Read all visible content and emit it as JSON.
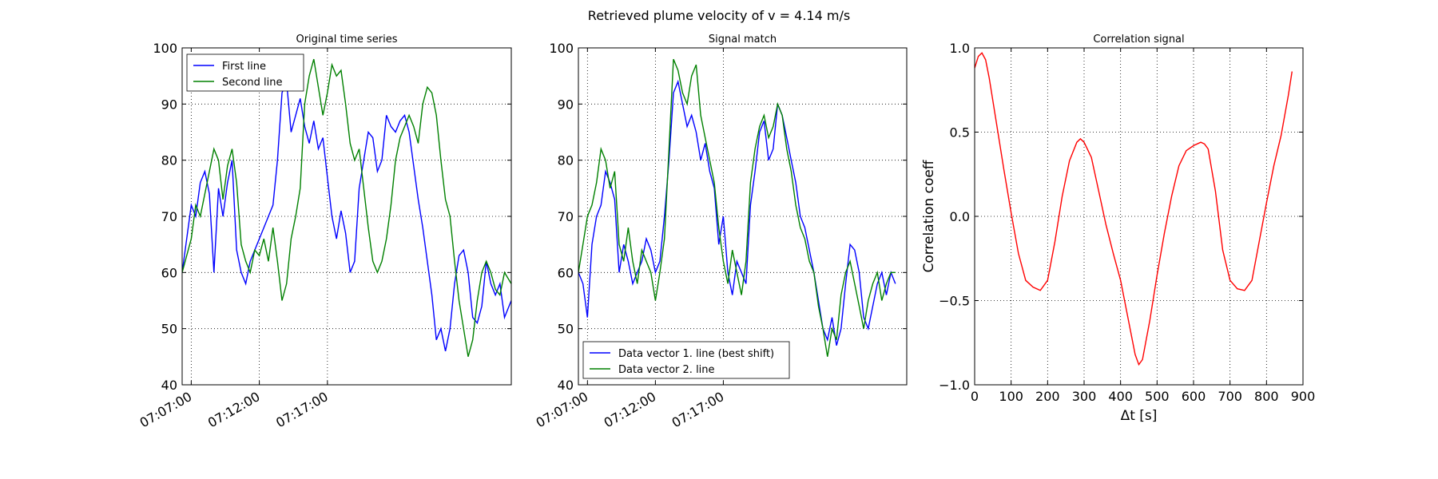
{
  "suptitle": "Retrieved plume velocity of v = 4.14 m/s",
  "colors": {
    "series1": "#0000ff",
    "series2": "#008000",
    "correlation": "#ff0000",
    "grid": "#000000"
  },
  "chart_data": [
    {
      "type": "line",
      "title": "Original time series",
      "xlabel": "",
      "ylabel": "",
      "x_unit": "seconds after 07:07:00",
      "xlim": [
        -40,
        1410
      ],
      "ylim": [
        40,
        100
      ],
      "x_tick_values": [
        0,
        300,
        600
      ],
      "x_tick_labels": [
        "07:07:00",
        "07:12:00",
        "07:17:00"
      ],
      "y_ticks": [
        40,
        50,
        60,
        70,
        80,
        90,
        100
      ],
      "grid": true,
      "legend": {
        "position": "top-left",
        "entries": [
          "First line",
          "Second line"
        ]
      },
      "series": [
        {
          "name": "First line",
          "color": "#0000ff",
          "x": [
            -40,
            0,
            20,
            40,
            60,
            80,
            100,
            120,
            140,
            160,
            180,
            200,
            220,
            240,
            260,
            280,
            300,
            320,
            340,
            360,
            380,
            400,
            420,
            440,
            460,
            480,
            500,
            520,
            540,
            560,
            580,
            600,
            620,
            640,
            660,
            680,
            700,
            720,
            740,
            760,
            780,
            800,
            820,
            840,
            860,
            880,
            900,
            920,
            940,
            960,
            980,
            1000,
            1020,
            1040,
            1060,
            1080,
            1100,
            1120,
            1140,
            1160,
            1180,
            1200,
            1220,
            1240,
            1260,
            1280,
            1300,
            1320,
            1340,
            1360,
            1380,
            1410
          ],
          "y": [
            60,
            72,
            70,
            76,
            78,
            74,
            60,
            75,
            70,
            76,
            80,
            64,
            60,
            58,
            62,
            64,
            66,
            68,
            70,
            72,
            80,
            92,
            94,
            85,
            88,
            91,
            86,
            83,
            87,
            82,
            84,
            77,
            70,
            66,
            71,
            67,
            60,
            62,
            75,
            80,
            85,
            84,
            78,
            80,
            88,
            86,
            85,
            87,
            88,
            85,
            79,
            73,
            68,
            62,
            56,
            48,
            50,
            46,
            50,
            58,
            63,
            64,
            60,
            52,
            51,
            54,
            62,
            58,
            56,
            58,
            52,
            55
          ]
        },
        {
          "name": "Second line",
          "color": "#008000",
          "x": [
            -40,
            0,
            20,
            40,
            60,
            80,
            100,
            120,
            140,
            160,
            180,
            200,
            220,
            240,
            260,
            280,
            300,
            320,
            340,
            360,
            380,
            400,
            420,
            440,
            460,
            480,
            500,
            520,
            540,
            560,
            580,
            600,
            620,
            640,
            660,
            680,
            700,
            720,
            740,
            760,
            780,
            800,
            820,
            840,
            860,
            880,
            900,
            920,
            940,
            960,
            980,
            1000,
            1020,
            1040,
            1060,
            1080,
            1100,
            1120,
            1140,
            1160,
            1180,
            1200,
            1220,
            1240,
            1260,
            1280,
            1300,
            1320,
            1340,
            1360,
            1380,
            1410
          ],
          "y": [
            60,
            66,
            72,
            70,
            74,
            78,
            82,
            80,
            73,
            79,
            82,
            76,
            65,
            62,
            60,
            64,
            63,
            66,
            62,
            68,
            62,
            55,
            58,
            66,
            70,
            75,
            90,
            95,
            98,
            93,
            88,
            92,
            97,
            95,
            96,
            90,
            83,
            80,
            82,
            75,
            68,
            62,
            60,
            62,
            66,
            72,
            80,
            84,
            86,
            88,
            86,
            83,
            90,
            93,
            92,
            88,
            80,
            73,
            70,
            62,
            55,
            50,
            45,
            48,
            55,
            60,
            62,
            60,
            57,
            56,
            60,
            58
          ]
        }
      ]
    },
    {
      "type": "line",
      "title": "Signal match",
      "xlabel": "",
      "ylabel": "",
      "x_unit": "seconds after 07:07:00",
      "xlim": [
        -40,
        1410
      ],
      "ylim": [
        40,
        100
      ],
      "x_tick_values": [
        0,
        300,
        600
      ],
      "x_tick_labels": [
        "07:07:00",
        "07:12:00",
        "07:17:00"
      ],
      "y_ticks": [
        40,
        50,
        60,
        70,
        80,
        90,
        100
      ],
      "grid": true,
      "legend": {
        "position": "bottom-left",
        "entries": [
          "Data vector 1. line (best shift)",
          "Data vector 2. line"
        ]
      },
      "series": [
        {
          "name": "Data vector 1. line (best shift)",
          "color": "#0000ff",
          "x": [
            -40,
            -20,
            0,
            20,
            40,
            60,
            80,
            100,
            120,
            140,
            160,
            180,
            200,
            220,
            240,
            260,
            280,
            300,
            320,
            340,
            360,
            380,
            400,
            420,
            440,
            460,
            480,
            500,
            520,
            540,
            560,
            580,
            600,
            620,
            640,
            660,
            680,
            700,
            720,
            740,
            760,
            780,
            800,
            820,
            840,
            860,
            880,
            900,
            920,
            940,
            960,
            980,
            1000,
            1020,
            1040,
            1060,
            1080,
            1100,
            1120,
            1140,
            1160,
            1180,
            1200,
            1220,
            1240,
            1260,
            1280,
            1300,
            1320,
            1340,
            1360
          ],
          "y": [
            60,
            58,
            52,
            65,
            70,
            72,
            78,
            76,
            73,
            60,
            65,
            62,
            58,
            60,
            62,
            66,
            64,
            60,
            62,
            70,
            80,
            92,
            94,
            90,
            86,
            88,
            85,
            80,
            83,
            78,
            75,
            65,
            70,
            60,
            56,
            62,
            60,
            58,
            72,
            78,
            85,
            87,
            80,
            82,
            90,
            88,
            84,
            80,
            76,
            70,
            68,
            64,
            60,
            55,
            50,
            48,
            52,
            47,
            50,
            58,
            65,
            64,
            60,
            52,
            50,
            54,
            58,
            60,
            56,
            60,
            58
          ]
        },
        {
          "name": "Data vector 2. line",
          "color": "#008000",
          "x": [
            -40,
            -20,
            0,
            20,
            40,
            60,
            80,
            100,
            120,
            140,
            160,
            180,
            200,
            220,
            240,
            260,
            280,
            300,
            320,
            340,
            360,
            380,
            400,
            420,
            440,
            460,
            480,
            500,
            520,
            540,
            560,
            580,
            600,
            620,
            640,
            660,
            680,
            700,
            720,
            740,
            760,
            780,
            800,
            820,
            840,
            860,
            880,
            900,
            920,
            940,
            960,
            980,
            1000,
            1020,
            1040,
            1060,
            1080,
            1100,
            1120,
            1140,
            1160,
            1180,
            1200,
            1220,
            1240,
            1260,
            1280,
            1300,
            1320,
            1340,
            1360
          ],
          "y": [
            60,
            65,
            70,
            72,
            76,
            82,
            80,
            75,
            78,
            65,
            62,
            68,
            62,
            58,
            64,
            62,
            60,
            55,
            60,
            66,
            82,
            98,
            96,
            92,
            90,
            95,
            97,
            88,
            84,
            80,
            76,
            68,
            62,
            58,
            64,
            60,
            56,
            62,
            76,
            82,
            86,
            88,
            84,
            86,
            90,
            88,
            82,
            78,
            72,
            68,
            66,
            62,
            60,
            54,
            50,
            45,
            50,
            48,
            56,
            60,
            62,
            58,
            54,
            50,
            55,
            58,
            60,
            55,
            58,
            60,
            60
          ]
        }
      ]
    },
    {
      "type": "line",
      "title": "Correlation signal",
      "xlabel": "Δt [s]",
      "ylabel": "Correlation coeff",
      "xlim": [
        0,
        900
      ],
      "ylim": [
        -1.0,
        1.0
      ],
      "x_ticks": [
        0,
        100,
        200,
        300,
        400,
        500,
        600,
        700,
        800,
        900
      ],
      "y_ticks": [
        -1.0,
        -0.5,
        0.0,
        0.5,
        1.0
      ],
      "x_tick_labels": [
        "0",
        "100",
        "200",
        "300",
        "400",
        "500",
        "600",
        "700",
        "800",
        "900"
      ],
      "y_tick_labels": [
        "−1.0",
        "−0.5",
        "0.0",
        "0.5",
        "1.0"
      ],
      "grid": true,
      "series": [
        {
          "color": "#ff0000",
          "x": [
            0,
            10,
            20,
            30,
            40,
            60,
            80,
            100,
            120,
            140,
            160,
            180,
            200,
            220,
            240,
            260,
            280,
            290,
            300,
            320,
            340,
            360,
            380,
            400,
            420,
            440,
            450,
            460,
            480,
            500,
            520,
            540,
            560,
            580,
            600,
            620,
            630,
            640,
            660,
            680,
            700,
            720,
            740,
            760,
            780,
            800,
            820,
            840,
            860,
            870
          ],
          "y": [
            0.88,
            0.95,
            0.97,
            0.93,
            0.82,
            0.55,
            0.28,
            0.02,
            -0.22,
            -0.38,
            -0.42,
            -0.44,
            -0.38,
            -0.15,
            0.12,
            0.33,
            0.44,
            0.46,
            0.44,
            0.35,
            0.15,
            -0.05,
            -0.22,
            -0.38,
            -0.6,
            -0.82,
            -0.88,
            -0.85,
            -0.62,
            -0.35,
            -0.1,
            0.12,
            0.3,
            0.39,
            0.42,
            0.44,
            0.43,
            0.4,
            0.15,
            -0.2,
            -0.38,
            -0.43,
            -0.44,
            -0.38,
            -0.15,
            0.08,
            0.3,
            0.48,
            0.72,
            0.86
          ]
        }
      ]
    }
  ]
}
